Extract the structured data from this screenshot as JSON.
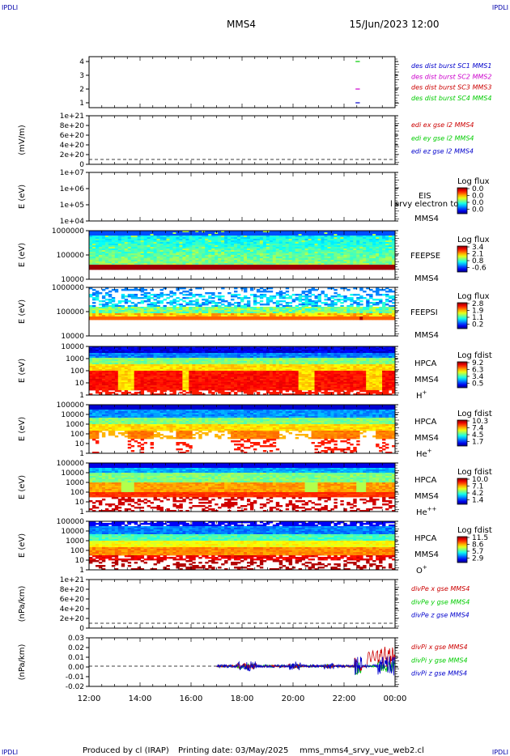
{
  "header": {
    "corner_tag": "IPDLI",
    "title": "MMS4",
    "datetime": "15/Jun/2023 12:00"
  },
  "footer": {
    "producer": "Produced by cl (IRAP)",
    "printing": "Printing date: 03/May/2025",
    "script": "mms_mms4_srvy_vue_web2.cl"
  },
  "colors": {
    "mms1": "#0000cc",
    "mms2": "#cc00cc",
    "mms3": "#cc0000",
    "mms4": "#00cc00",
    "x": "#cc0000",
    "y": "#00cc00",
    "z": "#0000cc"
  },
  "chart_data": {
    "type": "multi-panel time series / spectrogram",
    "x": {
      "ticks": [
        "12:00",
        "14:00",
        "16:00",
        "18:00",
        "20:00",
        "22:00",
        "00:00"
      ],
      "range_hours": [
        12,
        24
      ]
    },
    "panels": [
      {
        "id": "burst",
        "kind": "flags",
        "ylabel": "",
        "yticks": [
          "4",
          "3",
          "2",
          "1"
        ],
        "ylim": [
          0.5,
          4.5
        ],
        "legend": [
          {
            "label": "des dist burst SC1 MMS1",
            "color_key": "mms1"
          },
          {
            "label": "des dist burst SC2 MMS2",
            "color_key": "mms2"
          },
          {
            "label": "des dist burst SC3 MMS3",
            "color_key": "mms3"
          },
          {
            "label": "des dist burst SC4 MMS4",
            "color_key": "mms4"
          }
        ],
        "marks": [
          {
            "level": 4,
            "t_start": 22.45,
            "t_end": 22.62,
            "color_key": "mms4"
          },
          {
            "level": 2,
            "t_start": 22.45,
            "t_end": 22.62,
            "color_key": "mms2"
          },
          {
            "level": 1,
            "t_start": 22.45,
            "t_end": 22.62,
            "color_key": "mms1"
          }
        ]
      },
      {
        "id": "edi",
        "kind": "lines",
        "ylabel": "(mV/m)",
        "yticks": [
          "1e+21",
          "8e+20",
          "6e+20",
          "4e+20",
          "2e+20",
          "0"
        ],
        "ylim": [
          0,
          1e+21
        ],
        "zero_line": true,
        "legend": [
          {
            "label": "edi ex gse l2 MMS4",
            "color_key": "x"
          },
          {
            "label": "edi ey gse l2 MMS4",
            "color_key": "y"
          },
          {
            "label": "edi ez gse l2 MMS4",
            "color_key": "z"
          }
        ]
      },
      {
        "id": "eis",
        "kind": "empty-spectrogram",
        "ylabel": "E (eV)",
        "yticks": [
          "1e+07",
          "1e+06",
          "1e+05",
          "1e+04"
        ],
        "side_label": [
          "EIS",
          "MMS4"
        ],
        "overlay_text": "l srvy electron to",
        "colorbar": {
          "title": "Log flux",
          "ticks": [
            "0.0",
            "0.0",
            "0.0",
            "0.0"
          ]
        }
      },
      {
        "id": "feepse",
        "kind": "spectrogram",
        "ylabel": "E (eV)",
        "yticks": [
          "1000000",
          "100000",
          "10000"
        ],
        "side_label": [
          "FEEPSE",
          "MMS4"
        ],
        "colorbar": {
          "title": "Log flux",
          "ticks": [
            "3.4",
            "2.1",
            "0.8",
            "-0.6"
          ]
        }
      },
      {
        "id": "feepsi",
        "kind": "spectrogram",
        "ylabel": "E (eV)",
        "yticks": [
          "1000000",
          "100000",
          "10000"
        ],
        "side_label": [
          "FEEPSI",
          "MMS4"
        ],
        "colorbar": {
          "title": "Log flux",
          "ticks": [
            "2.8",
            "1.9",
            "1.1",
            "0.2"
          ]
        }
      },
      {
        "id": "hpca_h",
        "kind": "spectrogram",
        "ylabel": "E (eV)",
        "yticks": [
          "10000",
          "1000",
          "100",
          "10",
          "1"
        ],
        "side_label": [
          "HPCA",
          "MMS4"
        ],
        "species": {
          "base": "H",
          "sup": "+"
        },
        "colorbar": {
          "title": "Log fdist",
          "ticks": [
            "9.2",
            "6.3",
            "3.4",
            "0.5"
          ]
        }
      },
      {
        "id": "hpca_he1",
        "kind": "spectrogram",
        "ylabel": "E (eV)",
        "yticks": [
          "100000",
          "10000",
          "1000",
          "100",
          "10",
          "1"
        ],
        "side_label": [
          "HPCA",
          "MMS4"
        ],
        "species": {
          "base": "He",
          "sup": "+"
        },
        "colorbar": {
          "title": "Log fdist",
          "ticks": [
            "10.3",
            "7.4",
            "4.5",
            "1.7"
          ]
        }
      },
      {
        "id": "hpca_he2",
        "kind": "spectrogram",
        "ylabel": "E (eV)",
        "yticks": [
          "100000",
          "10000",
          "1000",
          "100",
          "10",
          "1"
        ],
        "side_label": [
          "HPCA",
          "MMS4"
        ],
        "species": {
          "base": "He",
          "sup": "++"
        },
        "colorbar": {
          "title": "Log fdist",
          "ticks": [
            "10.0",
            "7.1",
            "4.2",
            "1.4"
          ]
        }
      },
      {
        "id": "hpca_o",
        "kind": "spectrogram",
        "ylabel": "E (eV)",
        "yticks": [
          "100000",
          "10000",
          "1000",
          "100",
          "10",
          "1"
        ],
        "side_label": [
          "HPCA",
          "MMS4"
        ],
        "species": {
          "base": "O",
          "sup": "+"
        },
        "colorbar": {
          "title": "Log fdist",
          "ticks": [
            "11.5",
            "8.6",
            "5.7",
            "2.9"
          ]
        }
      },
      {
        "id": "divpe",
        "kind": "lines",
        "ylabel": "(nPa/km)",
        "yticks": [
          "1e+21",
          "8e+20",
          "6e+20",
          "4e+20",
          "2e+20",
          "0"
        ],
        "ylim": [
          0,
          1e+21
        ],
        "zero_line": true,
        "legend": [
          {
            "label": "divPe x gse MMS4",
            "color_key": "x"
          },
          {
            "label": "divPe y gse MMS4",
            "color_key": "y"
          },
          {
            "label": "divPe z gse MMS4",
            "color_key": "z"
          }
        ]
      },
      {
        "id": "divpi",
        "kind": "lines",
        "ylabel": "(nPa/km)",
        "yticks": [
          "0.03",
          "0.02",
          "0.01",
          "0.00",
          "-0.01",
          "-0.02"
        ],
        "ylim": [
          -0.025,
          0.035
        ],
        "zero_line": true,
        "legend": [
          {
            "label": "divPi x gse MMS4",
            "color_key": "x"
          },
          {
            "label": "divPi y gse MMS4",
            "color_key": "y"
          },
          {
            "label": "divPi z gse MMS4",
            "color_key": "z"
          }
        ],
        "data_window_hours": [
          17.0,
          24.0
        ]
      }
    ]
  }
}
